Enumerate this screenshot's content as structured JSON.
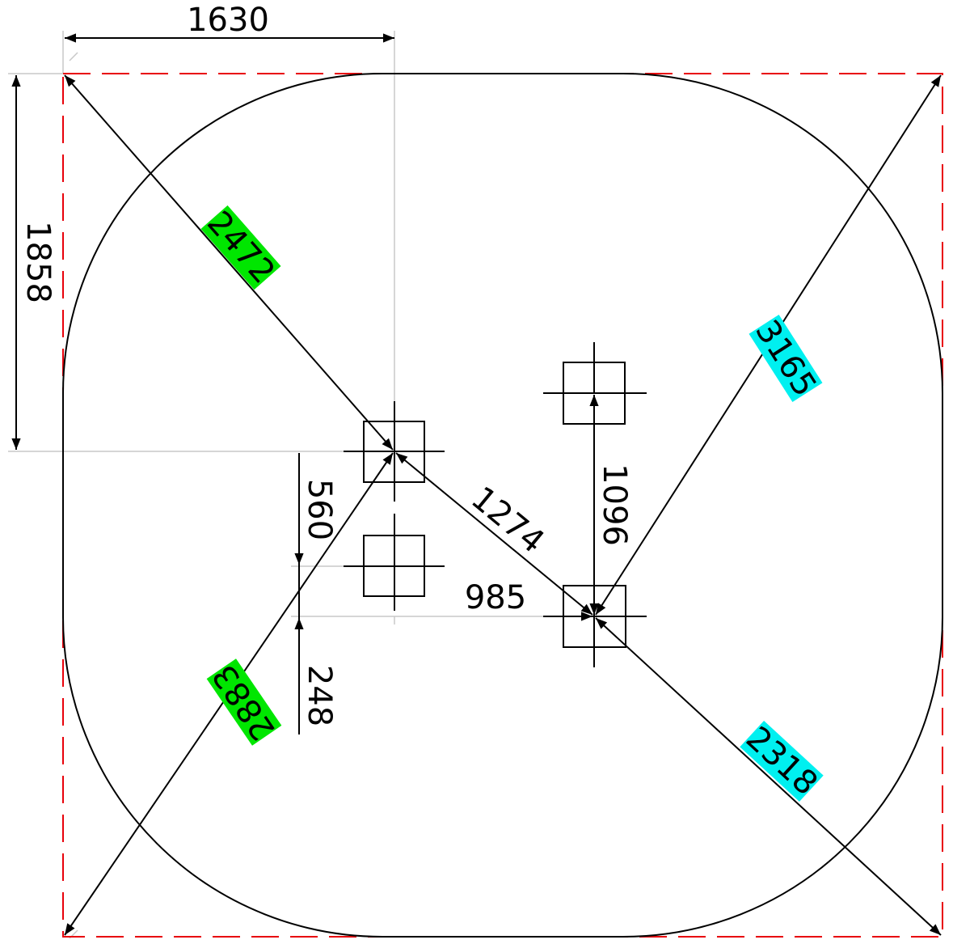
{
  "colors": {
    "outline": "#000000",
    "boundary": "#e8000b",
    "guide": "#c8c8c8",
    "highlight_green": "#00e600",
    "highlight_cyan": "#00f0f0"
  },
  "dimensions": {
    "width_to_center": "1630",
    "height_to_center": "1858",
    "diag_top_left": "2472",
    "diag_bottom_left": "2883",
    "diag_top_right": "3165",
    "diag_bottom_right": "2318",
    "center_to_right": "1274",
    "vertical_right": "1096",
    "horizontal_offset": "985",
    "vertical_upper": "560",
    "vertical_lower": "248"
  },
  "icons": {
    "mount_point": "crosshair-square-icon"
  }
}
